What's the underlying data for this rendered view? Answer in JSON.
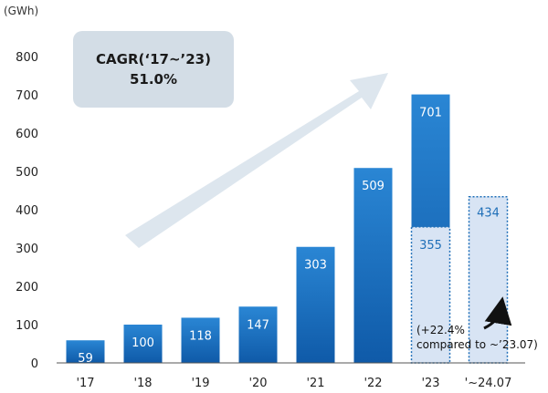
{
  "unit_label": "(GWh)",
  "cagr_box": {
    "line1": "CAGR(‘17~’23)",
    "line2": "51.0%"
  },
  "annotation": {
    "line1": "(+22.4%",
    "line2": "compared to ~’23.07)"
  },
  "colors": {
    "bar_top": "#2a86d4",
    "bar_bottom": "#0f5aa8",
    "partial_fill": "#d8e4f4",
    "partial_border": "#1f6fb8",
    "cagr_box": "#d3dde6",
    "arrow": "#dde6ee"
  },
  "chart_data": {
    "type": "bar",
    "categories": [
      "'17",
      "'18",
      "'19",
      "'20",
      "'21",
      "'22",
      "'23",
      "'~24.07"
    ],
    "values": [
      59,
      100,
      118,
      147,
      303,
      509,
      701,
      434
    ],
    "overlay": {
      "category": "'23",
      "value": 355
    },
    "ylabel": "(GWh)",
    "ylim": [
      0,
      800
    ],
    "yticks": [
      0,
      100,
      200,
      300,
      400,
      500,
      600,
      700,
      800
    ],
    "grid": false
  }
}
